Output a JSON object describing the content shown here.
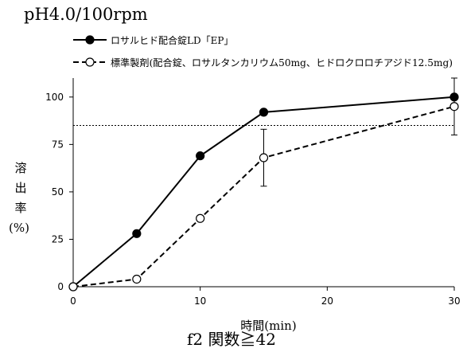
{
  "title": "pH4.0/100rpm",
  "footnote": "f2 関数≧42",
  "chart_data": {
    "type": "line",
    "xlabel": "時間(min)",
    "ylabel": [
      "溶",
      "出",
      "率",
      "(%)"
    ],
    "xlim": [
      0,
      30
    ],
    "ylim": [
      0,
      110
    ],
    "xticks": [
      0,
      10,
      20,
      30
    ],
    "yticks": [
      0,
      25,
      50,
      75,
      100
    ],
    "reference_line": {
      "y": 85,
      "style": "dotted"
    },
    "legend_position": "top-left",
    "grid": false,
    "series": [
      {
        "name": "ロサルヒド配合錠LD「EP」",
        "marker": "filled-circle",
        "line": "solid",
        "color": "#000000",
        "x": [
          0,
          5,
          10,
          15,
          30
        ],
        "y": [
          0,
          28,
          69,
          92,
          100
        ],
        "error": [
          0,
          0,
          0,
          0,
          0
        ]
      },
      {
        "name": "標準製剤(配合錠、ロサルタンカリウム50mg、ヒドロクロロチアジド12.5mg)",
        "marker": "open-circle",
        "line": "dashed",
        "color": "#000000",
        "x": [
          0,
          5,
          10,
          15,
          30
        ],
        "y": [
          0,
          4,
          36,
          68,
          95
        ],
        "error": [
          0,
          0,
          0,
          15,
          15
        ]
      }
    ]
  }
}
